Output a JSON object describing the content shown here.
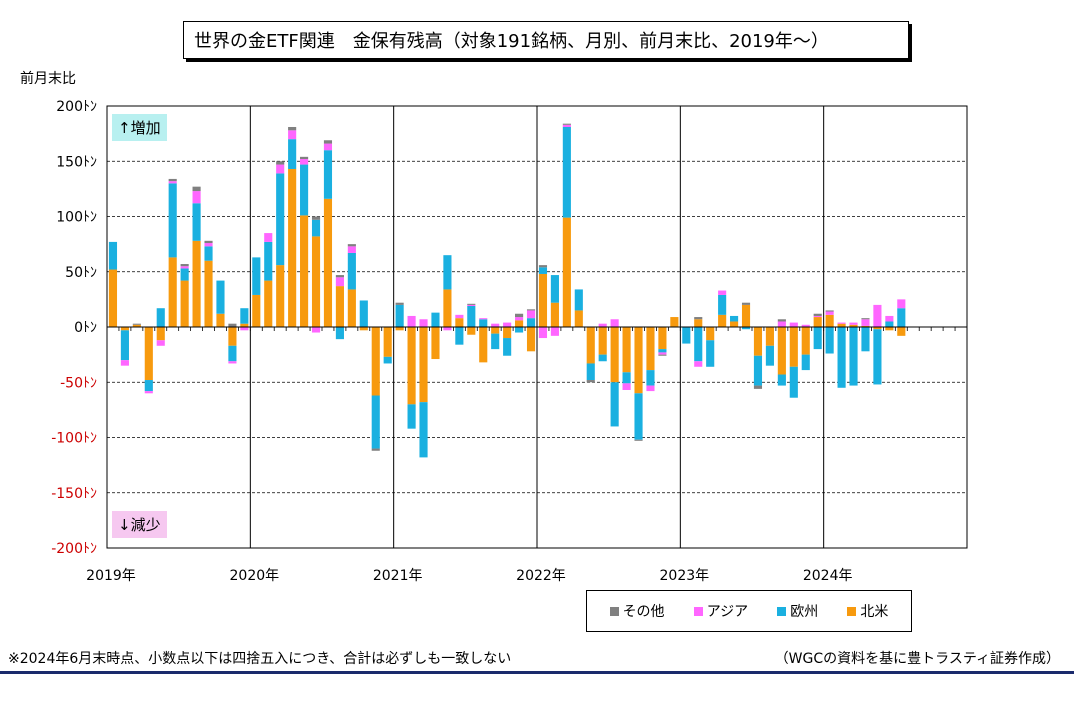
{
  "title": "世界の金ETF関連　金保有残高（対象191銘柄、月別、前月末比、2019年～）",
  "y_axis_title": "前月末比",
  "badges": {
    "up": "↑増加",
    "down": "↓減少"
  },
  "notes": {
    "left": "※2024年6月末時点、小数点以下は四捨五入につき、合計は必ずしも一致しない",
    "right": "（WGCの資料を基に豊トラスティ証券作成）"
  },
  "colors": {
    "other": "#808080",
    "asia": "#ff66ff",
    "europe": "#1ab0e0",
    "na": "#f79a0e",
    "grid": "#000000",
    "tick_neg": "#cc0000"
  },
  "chart_data": {
    "type": "bar",
    "stacked": true,
    "unit_suffix": "ﾄﾝ",
    "ylim": [
      -200,
      200
    ],
    "yticks": [
      200,
      150,
      100,
      50,
      0,
      -50,
      -100,
      -150,
      -200
    ],
    "tick_labels": [
      "200ﾄﾝ",
      "150ﾄﾝ",
      "100ﾄﾝ",
      "50ﾄﾝ",
      "0ﾄﾝ",
      "-50ﾄﾝ",
      "-100ﾄﾝ",
      "-150ﾄﾝ",
      "-200ﾄﾝ"
    ],
    "year_labels": [
      "2019年",
      "2020年",
      "2021年",
      "2022年",
      "2023年",
      "2024年"
    ],
    "months_total": 72,
    "legend": [
      "その他",
      "アジア",
      "欧州",
      "北米"
    ],
    "series_order": [
      "na",
      "europe",
      "asia",
      "other"
    ],
    "months": [
      [
        "2019-01",
        52,
        25,
        0,
        0
      ],
      [
        "2019-02",
        -3,
        -27,
        -5,
        0
      ],
      [
        "2019-03",
        2,
        0,
        0,
        1
      ],
      [
        "2019-04",
        -48,
        -10,
        -2,
        0
      ],
      [
        "2019-05",
        -12,
        17,
        -5,
        0
      ],
      [
        "2019-06",
        63,
        67,
        2,
        2
      ],
      [
        "2019-07",
        42,
        11,
        2,
        2
      ],
      [
        "2019-08",
        78,
        34,
        11,
        4
      ],
      [
        "2019-09",
        60,
        13,
        3,
        2
      ],
      [
        "2019-10",
        12,
        30,
        0,
        0
      ],
      [
        "2019-11",
        -17,
        -14,
        -2,
        3
      ],
      [
        "2019-12",
        3,
        14,
        -3,
        0
      ],
      [
        "2020-01",
        29,
        34,
        0,
        0
      ],
      [
        "2020-02",
        42,
        35,
        8,
        0
      ],
      [
        "2020-03",
        56,
        83,
        8,
        3
      ],
      [
        "2020-04",
        143,
        27,
        8,
        3
      ],
      [
        "2020-05",
        101,
        46,
        5,
        2
      ],
      [
        "2020-06",
        82,
        15,
        -5,
        3
      ],
      [
        "2020-07",
        116,
        44,
        6,
        3
      ],
      [
        "2020-08",
        37,
        -11,
        8,
        2
      ],
      [
        "2020-09",
        34,
        33,
        6,
        2
      ],
      [
        "2020-10",
        -3,
        24,
        0,
        0
      ],
      [
        "2020-11",
        -62,
        -48,
        0,
        -2
      ],
      [
        "2020-12",
        -27,
        -6,
        0,
        0
      ],
      [
        "2021-01",
        -3,
        20,
        0,
        2
      ],
      [
        "2021-02",
        -70,
        -22,
        10,
        0
      ],
      [
        "2021-03",
        -68,
        -50,
        7,
        0
      ],
      [
        "2021-04",
        -29,
        13,
        0,
        0
      ],
      [
        "2021-05",
        34,
        31,
        -3,
        0
      ],
      [
        "2021-06",
        8,
        -16,
        3,
        0
      ],
      [
        "2021-07",
        -7,
        19,
        1,
        1
      ],
      [
        "2021-08",
        -32,
        7,
        1,
        0
      ],
      [
        "2021-09",
        -6,
        -14,
        3,
        0
      ],
      [
        "2021-10",
        -10,
        -16,
        4,
        0
      ],
      [
        "2021-11",
        6,
        -5,
        3,
        3
      ],
      [
        "2021-12",
        -22,
        8,
        7,
        1
      ],
      [
        "2022-01",
        48,
        6,
        -10,
        2
      ],
      [
        "2022-02",
        22,
        25,
        -8,
        0
      ],
      [
        "2022-03",
        99,
        82,
        2,
        1
      ],
      [
        "2022-04",
        15,
        19,
        0,
        0
      ],
      [
        "2022-05",
        -33,
        -15,
        0,
        -2
      ],
      [
        "2022-06",
        -25,
        -6,
        3,
        0
      ],
      [
        "2022-07",
        -50,
        -40,
        7,
        0
      ],
      [
        "2022-08",
        -41,
        -10,
        -6,
        0
      ],
      [
        "2022-09",
        -60,
        -42,
        0,
        -1
      ],
      [
        "2022-10",
        -39,
        -14,
        -5,
        0
      ],
      [
        "2022-11",
        -20,
        -3,
        -2,
        -1
      ],
      [
        "2022-12",
        9,
        0,
        0,
        0
      ],
      [
        "2023-01",
        0,
        -15,
        0,
        0
      ],
      [
        "2023-02",
        7,
        -31,
        -5,
        2
      ],
      [
        "2023-03",
        -12,
        -24,
        0,
        0
      ],
      [
        "2023-04",
        11,
        18,
        4,
        0
      ],
      [
        "2023-05",
        5,
        5,
        0,
        0
      ],
      [
        "2023-06",
        20,
        -2,
        0,
        2
      ],
      [
        "2023-07",
        -26,
        -27,
        0,
        -3
      ],
      [
        "2023-08",
        -17,
        -18,
        0,
        0
      ],
      [
        "2023-09",
        -43,
        -10,
        5,
        2
      ],
      [
        "2023-10",
        -36,
        -28,
        4,
        0
      ],
      [
        "2023-11",
        -25,
        -14,
        2,
        0
      ],
      [
        "2023-12",
        9,
        -20,
        1,
        2
      ],
      [
        "2024-01",
        11,
        -24,
        3,
        1
      ],
      [
        "2024-02",
        3,
        -55,
        1,
        0
      ],
      [
        "2024-03",
        2,
        -53,
        2,
        0
      ],
      [
        "2024-04",
        1,
        -22,
        6,
        1
      ],
      [
        "2024-05",
        -2,
        -50,
        20,
        0
      ],
      [
        "2024-06",
        -3,
        5,
        5,
        0
      ],
      [
        "2024-07",
        -8,
        17,
        8,
        0
      ],
      [
        "2024-08",
        0,
        0,
        0,
        0
      ],
      [
        "2024-09",
        0,
        0,
        0,
        0
      ],
      [
        "2024-10",
        0,
        0,
        0,
        0
      ],
      [
        "2024-11",
        0,
        0,
        0,
        0
      ],
      [
        "2024-12",
        0,
        0,
        0,
        0
      ]
    ]
  }
}
